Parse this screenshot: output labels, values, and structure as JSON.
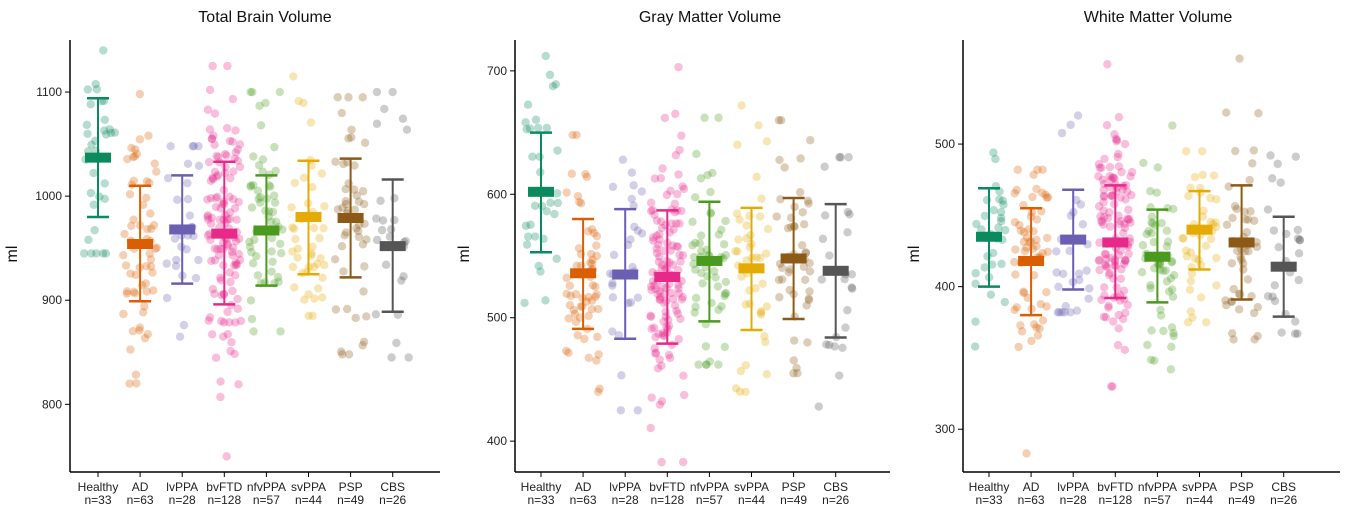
{
  "chart_data": [
    {
      "type": "scatter",
      "title": "Total Brain Volume",
      "ylabel": "ml",
      "xlabel": "",
      "ylim": [
        735,
        1150
      ],
      "yticks": [
        800,
        900,
        1000,
        1100
      ],
      "groups": [
        {
          "name": "Healthy",
          "n_label": "n=33",
          "color": "#0b8a5e",
          "mean": 1037,
          "lower": 980,
          "upper": 1094,
          "min": 945,
          "max": 1140,
          "count": 33
        },
        {
          "name": "AD",
          "n_label": "n=63",
          "color": "#d95f02",
          "mean": 954,
          "lower": 899,
          "upper": 1010,
          "min": 820,
          "max": 1098,
          "count": 63
        },
        {
          "name": "lvPPA",
          "n_label": "n=28",
          "color": "#6a5fb0",
          "mean": 968,
          "lower": 916,
          "upper": 1020,
          "min": 865,
          "max": 1048,
          "count": 28
        },
        {
          "name": "bvFTD",
          "n_label": "n=128",
          "color": "#e7298a",
          "mean": 964,
          "lower": 896,
          "upper": 1033,
          "min": 750,
          "max": 1125,
          "count": 128
        },
        {
          "name": "nfvPPA",
          "n_label": "n=57",
          "color": "#4a9a1e",
          "mean": 967,
          "lower": 914,
          "upper": 1020,
          "min": 870,
          "max": 1100,
          "count": 57
        },
        {
          "name": "svPPA",
          "n_label": "n=44",
          "color": "#e6ab02",
          "mean": 980,
          "lower": 925,
          "upper": 1034,
          "min": 885,
          "max": 1115,
          "count": 44
        },
        {
          "name": "PSP",
          "n_label": "n=49",
          "color": "#8c5a16",
          "mean": 979,
          "lower": 922,
          "upper": 1036,
          "min": 848,
          "max": 1095,
          "count": 49
        },
        {
          "name": "CBS",
          "n_label": "n=26",
          "color": "#555555",
          "mean": 952,
          "lower": 889,
          "upper": 1016,
          "min": 845,
          "max": 1100,
          "count": 26
        }
      ]
    },
    {
      "type": "scatter",
      "title": "Gray Matter Volume",
      "ylabel": "ml",
      "xlabel": "",
      "ylim": [
        375,
        725
      ],
      "yticks": [
        400,
        500,
        600,
        700
      ],
      "groups": [
        {
          "name": "Healthy",
          "n_label": "n=33",
          "color": "#0b8a5e",
          "mean": 602,
          "lower": 553,
          "upper": 650,
          "min": 512,
          "max": 712,
          "count": 33
        },
        {
          "name": "AD",
          "n_label": "n=63",
          "color": "#d95f02",
          "mean": 536,
          "lower": 491,
          "upper": 580,
          "min": 440,
          "max": 648,
          "count": 63
        },
        {
          "name": "lvPPA",
          "n_label": "n=28",
          "color": "#6a5fb0",
          "mean": 535,
          "lower": 483,
          "upper": 588,
          "min": 425,
          "max": 628,
          "count": 28
        },
        {
          "name": "bvFTD",
          "n_label": "n=128",
          "color": "#e7298a",
          "mean": 533,
          "lower": 479,
          "upper": 587,
          "min": 383,
          "max": 703,
          "count": 128
        },
        {
          "name": "nfvPPA",
          "n_label": "n=57",
          "color": "#4a9a1e",
          "mean": 546,
          "lower": 497,
          "upper": 594,
          "min": 462,
          "max": 662,
          "count": 57
        },
        {
          "name": "svPPA",
          "n_label": "n=44",
          "color": "#e6ab02",
          "mean": 540,
          "lower": 490,
          "upper": 589,
          "min": 440,
          "max": 672,
          "count": 44
        },
        {
          "name": "PSP",
          "n_label": "n=49",
          "color": "#8c5a16",
          "mean": 548,
          "lower": 499,
          "upper": 597,
          "min": 455,
          "max": 660,
          "count": 49
        },
        {
          "name": "CBS",
          "n_label": "n=26",
          "color": "#555555",
          "mean": 538,
          "lower": 484,
          "upper": 592,
          "min": 428,
          "max": 630,
          "count": 26
        }
      ]
    },
    {
      "type": "scatter",
      "title": "White Matter Volume",
      "ylabel": "ml",
      "xlabel": "",
      "ylim": [
        270,
        573
      ],
      "yticks": [
        300,
        400,
        500
      ],
      "groups": [
        {
          "name": "Healthy",
          "n_label": "n=33",
          "color": "#0b8a5e",
          "mean": 435,
          "lower": 400,
          "upper": 469,
          "min": 358,
          "max": 494,
          "count": 33
        },
        {
          "name": "AD",
          "n_label": "n=63",
          "color": "#d95f02",
          "mean": 418,
          "lower": 380,
          "upper": 455,
          "min": 283,
          "max": 482,
          "count": 63
        },
        {
          "name": "lvPPA",
          "n_label": "n=28",
          "color": "#6a5fb0",
          "mean": 433,
          "lower": 398,
          "upper": 468,
          "min": 382,
          "max": 520,
          "count": 28
        },
        {
          "name": "bvFTD",
          "n_label": "n=128",
          "color": "#e7298a",
          "mean": 431,
          "lower": 392,
          "upper": 471,
          "min": 330,
          "max": 556,
          "count": 128
        },
        {
          "name": "nfvPPA",
          "n_label": "n=57",
          "color": "#4a9a1e",
          "mean": 421,
          "lower": 389,
          "upper": 454,
          "min": 342,
          "max": 513,
          "count": 57
        },
        {
          "name": "svPPA",
          "n_label": "n=44",
          "color": "#e6ab02",
          "mean": 440,
          "lower": 412,
          "upper": 467,
          "min": 375,
          "max": 495,
          "count": 44
        },
        {
          "name": "PSP",
          "n_label": "n=49",
          "color": "#8c5a16",
          "mean": 431,
          "lower": 391,
          "upper": 471,
          "min": 363,
          "max": 560,
          "count": 49
        },
        {
          "name": "CBS",
          "n_label": "n=26",
          "color": "#555555",
          "mean": 414,
          "lower": 379,
          "upper": 449,
          "min": 367,
          "max": 492,
          "count": 26
        }
      ]
    }
  ]
}
